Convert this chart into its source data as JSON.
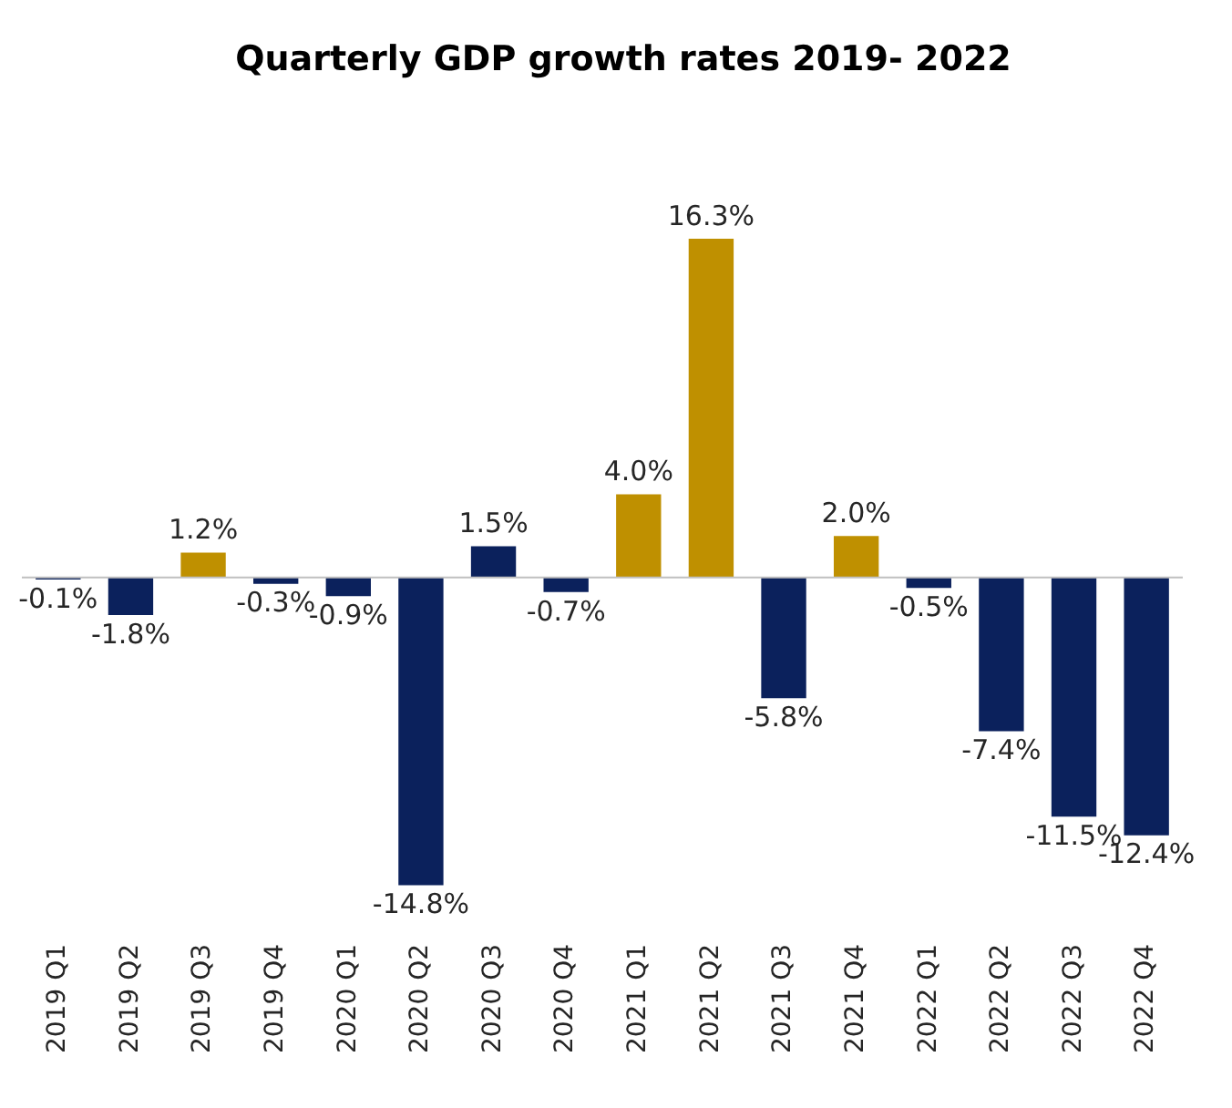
{
  "chart_data": {
    "type": "bar",
    "title": "Quarterly GDP growth rates 2019- 2022",
    "categories": [
      "2019 Q1",
      "2019 Q2",
      "2019 Q3",
      "2019 Q4",
      "2020 Q1",
      "2020 Q2",
      "2020 Q3",
      "2020 Q4",
      "2021 Q1",
      "2021 Q2",
      "2021 Q3",
      "2021 Q4",
      "2022 Q1",
      "2022 Q2",
      "2022 Q3",
      "2022 Q4"
    ],
    "values": [
      -0.1,
      -1.8,
      1.2,
      -0.3,
      -0.9,
      -14.8,
      1.5,
      -0.7,
      4.0,
      16.3,
      -5.8,
      2.0,
      -0.5,
      -7.4,
      -11.5,
      -12.4
    ],
    "value_labels": [
      "-0.1%",
      "-1.8%",
      "1.2%",
      "-0.3%",
      "-0.9%",
      "-14.8%",
      "1.5%",
      "-0.7%",
      "4.0%",
      "16.3%",
      "-5.8%",
      "2.0%",
      "-0.5%",
      "-7.4%",
      "-11.5%",
      "-12.4%"
    ],
    "colors": [
      "#0b215c",
      "#0b215c",
      "#bf9000",
      "#0b215c",
      "#0b215c",
      "#0b215c",
      "#0b215c",
      "#0b215c",
      "#bf9000",
      "#bf9000",
      "#0b215c",
      "#bf9000",
      "#0b215c",
      "#0b215c",
      "#0b215c",
      "#0b215c"
    ],
    "ref_lines": [
      {
        "axis": "y",
        "value": 0,
        "color": "#bfbfbf"
      }
    ],
    "tick_labels": "x",
    "grid": false,
    "legend": false
  }
}
